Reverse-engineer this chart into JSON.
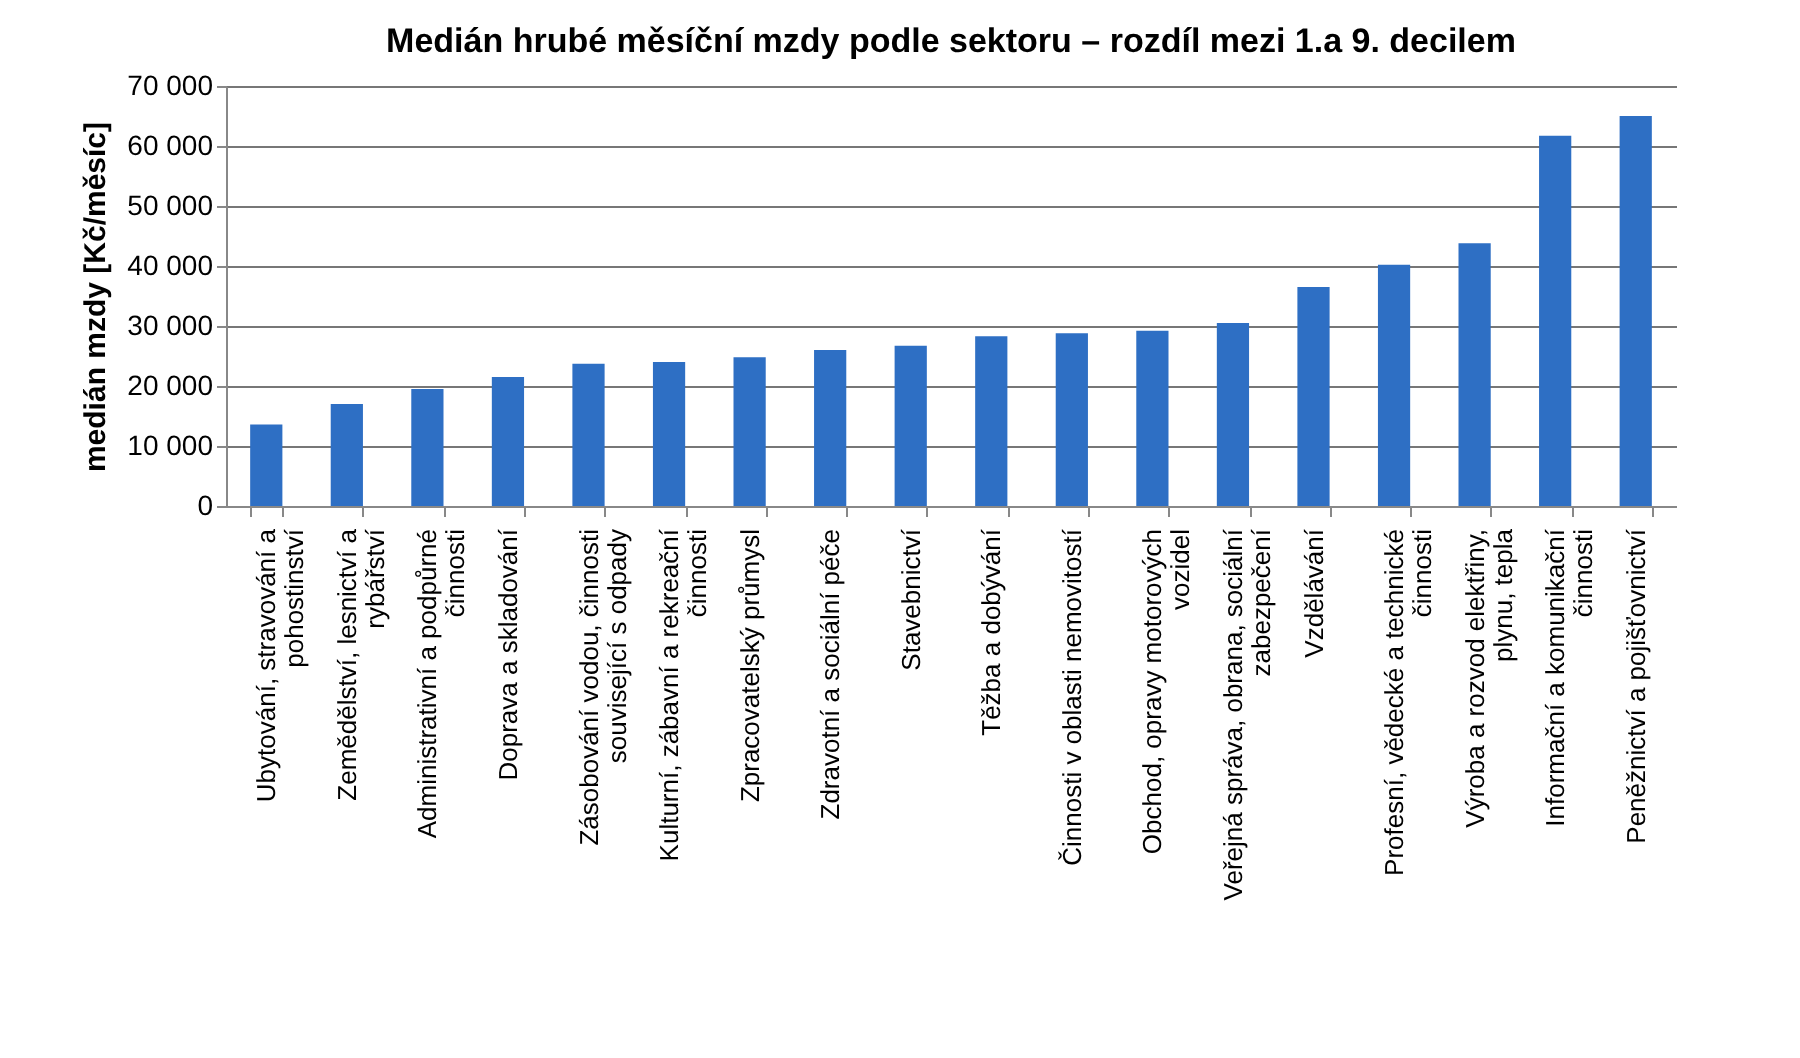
{
  "chart_data": {
    "type": "bar",
    "title": "Medián hrubé měsíční mzdy podle sektoru – rozdíl mezi 1.a 9. decilem",
    "ylabel": "medián mzdy [Kč/měsíc]",
    "categories": [
      "Ubytování, stravování a pohostinství",
      "Zemědělství, lesnictví a rybářství",
      "Administrativní a podpůrné činnosti",
      "Doprava a skladování",
      "Zásobování vodou, činnosti související s odpady",
      "Kulturní, zábavní a rekreační činnosti",
      "Zpracovatelský průmysl",
      "Zdravotní a sociální péče",
      "Stavebnictví",
      "Těžba a dobývání",
      "Činnosti v oblasti nemovitostí",
      "Obchod, opravy motorových vozidel",
      "Veřejná správa, obrana, sociální zabezpečení",
      "Vzdělávání",
      "Profesní, vědecké a technické činnosti",
      "Výroba a rozvod elektřiny, plynu, tepla",
      "Informační a komunikační činnosti",
      "Peněžnictví a pojišťovnictví"
    ],
    "values": [
      13600,
      17000,
      19500,
      21500,
      23700,
      24000,
      24800,
      26000,
      26700,
      28300,
      28800,
      29200,
      30500,
      36500,
      40200,
      43800,
      61700,
      65000
    ],
    "color": "#2e6fc4",
    "ylim": [
      0,
      70000
    ],
    "yticks": [
      {
        "value": 0,
        "label": "0"
      },
      {
        "value": 10000,
        "label": "10 000"
      },
      {
        "value": 20000,
        "label": "20 000"
      },
      {
        "value": 30000,
        "label": "30 000"
      },
      {
        "value": 40000,
        "label": "40 000"
      },
      {
        "value": 50000,
        "label": "50 000"
      },
      {
        "value": 60000,
        "label": "60 000"
      },
      {
        "value": 70000,
        "label": "70 000"
      }
    ],
    "grid": "y"
  }
}
